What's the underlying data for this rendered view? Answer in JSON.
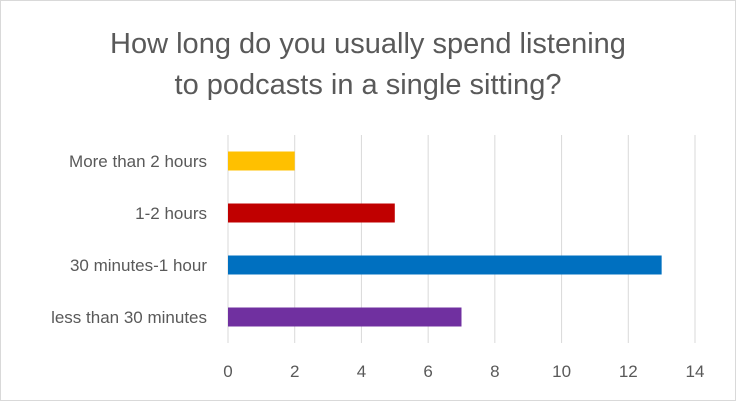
{
  "chart_data": {
    "type": "bar",
    "orientation": "horizontal",
    "title_lines": [
      "How long do you usually spend listening",
      "to podcasts in a single sitting?"
    ],
    "categories": [
      "More than 2 hours",
      "1-2 hours",
      "30 minutes-1 hour",
      "less than 30 minutes"
    ],
    "values": [
      2,
      5,
      13,
      7
    ],
    "colors": [
      "#ffc000",
      "#c00000",
      "#0070c0",
      "#7030a0"
    ],
    "xlim": [
      0,
      14
    ],
    "x_ticks": [
      0,
      2,
      4,
      6,
      8,
      10,
      12,
      14
    ],
    "xlabel": "",
    "ylabel": "",
    "grid": true,
    "legend": "none"
  },
  "colors": {
    "text": "#595959",
    "grid": "#d9d9d9",
    "border": "#d9d9d9"
  }
}
